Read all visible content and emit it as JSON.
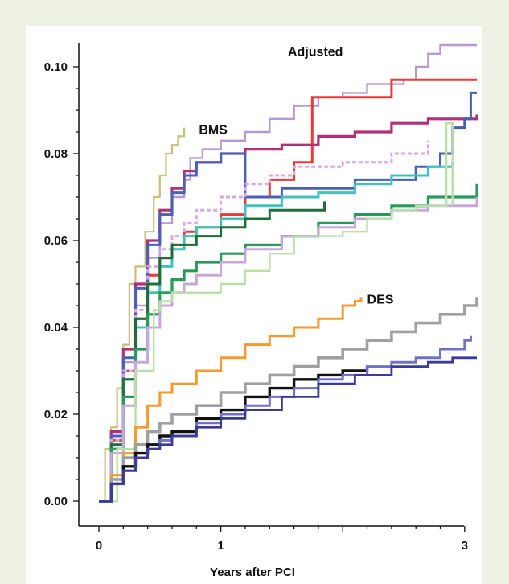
{
  "chart_data": {
    "type": "line",
    "xlabel": "Years after PCI",
    "ylabel": "",
    "xlim": [
      0,
      3.1
    ],
    "ylim": [
      0,
      0.105
    ],
    "x_ticks": [
      0,
      1,
      3
    ],
    "x_tick_labels": [
      "0",
      "1",
      "3"
    ],
    "y_ticks": [
      0,
      0.02,
      0.04,
      0.06,
      0.08,
      0.1
    ],
    "y_tick_labels": [
      "0.00",
      "0.02",
      "0.04",
      "0.06",
      "0.08",
      "0.10"
    ],
    "annotations": [
      {
        "text": "Adjusted",
        "x": 1.55,
        "y": 0.1025
      },
      {
        "text": "BMS",
        "x": 0.82,
        "y": 0.0845
      },
      {
        "text": "DES",
        "x": 2.2,
        "y": 0.0455
      }
    ],
    "grid": false,
    "series": [
      {
        "group": "BMS",
        "color": "#c8c07a",
        "width": 2.2,
        "dash": false,
        "points": [
          [
            0,
            0
          ],
          [
            0.05,
            0.012
          ],
          [
            0.1,
            0.017
          ],
          [
            0.15,
            0.026
          ],
          [
            0.2,
            0.036
          ],
          [
            0.25,
            0.05
          ],
          [
            0.3,
            0.054
          ],
          [
            0.38,
            0.062
          ],
          [
            0.45,
            0.07
          ],
          [
            0.5,
            0.075
          ],
          [
            0.55,
            0.08
          ],
          [
            0.6,
            0.082
          ],
          [
            0.65,
            0.084
          ],
          [
            0.7,
            0.086
          ]
        ]
      },
      {
        "group": "BMS",
        "color": "#b898d0",
        "width": 2.4,
        "dash": false,
        "points": [
          [
            0,
            0
          ],
          [
            0.1,
            0.014
          ],
          [
            0.2,
            0.032
          ],
          [
            0.3,
            0.045
          ],
          [
            0.4,
            0.056
          ],
          [
            0.5,
            0.064
          ],
          [
            0.6,
            0.07
          ],
          [
            0.7,
            0.074
          ],
          [
            0.75,
            0.079
          ],
          [
            0.85,
            0.081
          ],
          [
            1.0,
            0.083
          ],
          [
            1.2,
            0.085
          ],
          [
            1.4,
            0.088
          ],
          [
            1.6,
            0.091
          ],
          [
            1.8,
            0.093
          ],
          [
            2.0,
            0.094
          ],
          [
            2.2,
            0.096
          ],
          [
            2.5,
            0.097
          ],
          [
            2.6,
            0.1
          ],
          [
            2.7,
            0.103
          ],
          [
            2.8,
            0.105
          ],
          [
            3.1,
            0.105
          ]
        ]
      },
      {
        "group": "BMS",
        "color": "#e83a3a",
        "width": 3,
        "dash": false,
        "points": [
          [
            0,
            0
          ],
          [
            0.1,
            0.014
          ],
          [
            0.2,
            0.03
          ],
          [
            0.3,
            0.042
          ],
          [
            0.4,
            0.052
          ],
          [
            0.5,
            0.056
          ],
          [
            0.6,
            0.059
          ],
          [
            0.7,
            0.062
          ],
          [
            0.8,
            0.063
          ],
          [
            1.0,
            0.066
          ],
          [
            1.2,
            0.07
          ],
          [
            1.4,
            0.074
          ],
          [
            1.6,
            0.078
          ],
          [
            1.75,
            0.093
          ],
          [
            1.9,
            0.093
          ],
          [
            2.1,
            0.093
          ],
          [
            2.3,
            0.093
          ],
          [
            2.4,
            0.097
          ],
          [
            3.1,
            0.097
          ]
        ]
      },
      {
        "group": "BMS",
        "color": "#b0307a",
        "width": 3.2,
        "dash": false,
        "points": [
          [
            0,
            0
          ],
          [
            0.1,
            0.016
          ],
          [
            0.2,
            0.035
          ],
          [
            0.3,
            0.05
          ],
          [
            0.4,
            0.06
          ],
          [
            0.5,
            0.067
          ],
          [
            0.6,
            0.072
          ],
          [
            0.7,
            0.076
          ],
          [
            0.8,
            0.078
          ],
          [
            1.0,
            0.08
          ],
          [
            1.2,
            0.081
          ],
          [
            1.5,
            0.082
          ],
          [
            1.8,
            0.084
          ],
          [
            2.1,
            0.085
          ],
          [
            2.4,
            0.087
          ],
          [
            2.7,
            0.088
          ],
          [
            3.1,
            0.089
          ]
        ]
      },
      {
        "group": "BMS",
        "color": "#4860b8",
        "width": 3,
        "dash": false,
        "points": [
          [
            0,
            0
          ],
          [
            0.1,
            0.015
          ],
          [
            0.2,
            0.033
          ],
          [
            0.3,
            0.049
          ],
          [
            0.4,
            0.059
          ],
          [
            0.5,
            0.066
          ],
          [
            0.6,
            0.071
          ],
          [
            0.7,
            0.075
          ],
          [
            0.8,
            0.078
          ],
          [
            1.0,
            0.08
          ],
          [
            1.2,
            0.07
          ],
          [
            1.5,
            0.072
          ],
          [
            1.8,
            0.072
          ],
          [
            2.1,
            0.074
          ],
          [
            2.4,
            0.074
          ],
          [
            2.6,
            0.077
          ],
          [
            2.8,
            0.08
          ],
          [
            2.9,
            0.086
          ],
          [
            3.0,
            0.088
          ],
          [
            3.05,
            0.094
          ],
          [
            3.1,
            0.094
          ]
        ]
      },
      {
        "group": "BMS",
        "color": "#d8a8e0",
        "width": 3,
        "dash": true,
        "points": [
          [
            0,
            0
          ],
          [
            0.1,
            0.014
          ],
          [
            0.2,
            0.03
          ],
          [
            0.3,
            0.044
          ],
          [
            0.4,
            0.054
          ],
          [
            0.5,
            0.058
          ],
          [
            0.6,
            0.061
          ],
          [
            0.7,
            0.064
          ],
          [
            0.8,
            0.067
          ],
          [
            1.0,
            0.07
          ],
          [
            1.2,
            0.073
          ],
          [
            1.4,
            0.075
          ],
          [
            1.6,
            0.077
          ],
          [
            2.0,
            0.078
          ],
          [
            2.4,
            0.08
          ],
          [
            2.6,
            0.08
          ],
          [
            2.7,
            0.083
          ]
        ]
      },
      {
        "group": "BMS",
        "color": "#40c0c0",
        "width": 3,
        "dash": false,
        "points": [
          [
            0,
            0
          ],
          [
            0.1,
            0.013
          ],
          [
            0.2,
            0.028
          ],
          [
            0.3,
            0.04
          ],
          [
            0.4,
            0.048
          ],
          [
            0.5,
            0.054
          ],
          [
            0.6,
            0.058
          ],
          [
            0.7,
            0.061
          ],
          [
            0.8,
            0.063
          ],
          [
            1.0,
            0.065
          ],
          [
            1.2,
            0.068
          ],
          [
            1.5,
            0.07
          ],
          [
            1.8,
            0.071
          ],
          [
            2.1,
            0.073
          ],
          [
            2.4,
            0.075
          ],
          [
            2.7,
            0.077
          ],
          [
            2.9,
            0.078
          ]
        ]
      },
      {
        "group": "BMS",
        "color": "#1e6e3a",
        "width": 3,
        "dash": false,
        "points": [
          [
            0,
            0
          ],
          [
            0.1,
            0.013
          ],
          [
            0.2,
            0.028
          ],
          [
            0.3,
            0.042
          ],
          [
            0.4,
            0.05
          ],
          [
            0.5,
            0.056
          ],
          [
            0.6,
            0.059
          ],
          [
            0.8,
            0.061
          ],
          [
            1.0,
            0.063
          ],
          [
            1.2,
            0.065
          ],
          [
            1.4,
            0.067
          ],
          [
            1.6,
            0.067
          ],
          [
            1.85,
            0.069
          ]
        ]
      },
      {
        "group": "BMS",
        "color": "#2a9a5a",
        "width": 3.2,
        "dash": false,
        "points": [
          [
            0,
            0
          ],
          [
            0.1,
            0.012
          ],
          [
            0.2,
            0.024
          ],
          [
            0.3,
            0.035
          ],
          [
            0.4,
            0.043
          ],
          [
            0.5,
            0.048
          ],
          [
            0.6,
            0.051
          ],
          [
            0.7,
            0.053
          ],
          [
            0.8,
            0.055
          ],
          [
            1.0,
            0.057
          ],
          [
            1.2,
            0.059
          ],
          [
            1.5,
            0.061
          ],
          [
            1.8,
            0.064
          ],
          [
            2.1,
            0.066
          ],
          [
            2.4,
            0.068
          ],
          [
            2.7,
            0.07
          ],
          [
            3.1,
            0.073
          ]
        ]
      },
      {
        "group": "BMS",
        "color": "#c8a8dc",
        "width": 3,
        "dash": false,
        "points": [
          [
            0,
            0
          ],
          [
            0.1,
            0.011
          ],
          [
            0.2,
            0.022
          ],
          [
            0.3,
            0.032
          ],
          [
            0.4,
            0.04
          ],
          [
            0.5,
            0.045
          ],
          [
            0.6,
            0.048
          ],
          [
            0.7,
            0.05
          ],
          [
            0.8,
            0.052
          ],
          [
            1.0,
            0.055
          ],
          [
            1.2,
            0.058
          ],
          [
            1.5,
            0.061
          ],
          [
            1.8,
            0.063
          ],
          [
            2.1,
            0.065
          ],
          [
            2.4,
            0.067
          ],
          [
            2.7,
            0.068
          ],
          [
            3.1,
            0.07
          ]
        ]
      },
      {
        "group": "BMS",
        "color": "#b8e0a8",
        "width": 2.4,
        "dash": false,
        "points": [
          [
            0,
            0
          ],
          [
            0.15,
            0.012
          ],
          [
            0.3,
            0.03
          ],
          [
            0.45,
            0.044
          ],
          [
            0.5,
            0.046
          ],
          [
            0.6,
            0.048
          ],
          [
            0.8,
            0.048
          ],
          [
            1.0,
            0.05
          ],
          [
            1.2,
            0.053
          ],
          [
            1.4,
            0.057
          ],
          [
            1.6,
            0.061
          ],
          [
            1.8,
            0.061
          ],
          [
            2.0,
            0.062
          ],
          [
            2.2,
            0.065
          ],
          [
            2.4,
            0.067
          ],
          [
            2.6,
            0.068
          ],
          [
            2.8,
            0.068
          ],
          [
            2.85,
            0.087
          ],
          [
            2.9,
            0.068
          ]
        ]
      },
      {
        "group": "DES",
        "color": "#f59a30",
        "width": 3,
        "dash": false,
        "points": [
          [
            0,
            0
          ],
          [
            0.1,
            0.006
          ],
          [
            0.2,
            0.011
          ],
          [
            0.3,
            0.017
          ],
          [
            0.4,
            0.022
          ],
          [
            0.5,
            0.025
          ],
          [
            0.6,
            0.027
          ],
          [
            0.8,
            0.03
          ],
          [
            1.0,
            0.033
          ],
          [
            1.2,
            0.036
          ],
          [
            1.4,
            0.038
          ],
          [
            1.6,
            0.04
          ],
          [
            1.8,
            0.042
          ],
          [
            2.0,
            0.045
          ],
          [
            2.1,
            0.046
          ],
          [
            2.15,
            0.047
          ]
        ]
      },
      {
        "group": "DES",
        "color": "#a0a0a0",
        "width": 3.6,
        "dash": false,
        "points": [
          [
            0,
            0
          ],
          [
            0.1,
            0.005
          ],
          [
            0.2,
            0.01
          ],
          [
            0.3,
            0.013
          ],
          [
            0.4,
            0.016
          ],
          [
            0.5,
            0.018
          ],
          [
            0.6,
            0.02
          ],
          [
            0.8,
            0.022
          ],
          [
            1.0,
            0.025
          ],
          [
            1.2,
            0.027
          ],
          [
            1.4,
            0.029
          ],
          [
            1.6,
            0.031
          ],
          [
            1.8,
            0.033
          ],
          [
            2.0,
            0.035
          ],
          [
            2.2,
            0.037
          ],
          [
            2.4,
            0.039
          ],
          [
            2.6,
            0.041
          ],
          [
            2.8,
            0.043
          ],
          [
            3.0,
            0.045
          ],
          [
            3.1,
            0.047
          ]
        ]
      },
      {
        "group": "DES",
        "color": "#111111",
        "width": 3.4,
        "dash": false,
        "points": [
          [
            0,
            0
          ],
          [
            0.1,
            0.004
          ],
          [
            0.2,
            0.008
          ],
          [
            0.3,
            0.011
          ],
          [
            0.4,
            0.013
          ],
          [
            0.5,
            0.015
          ],
          [
            0.6,
            0.016
          ],
          [
            0.8,
            0.019
          ],
          [
            1.0,
            0.021
          ],
          [
            1.2,
            0.024
          ],
          [
            1.4,
            0.026
          ],
          [
            1.6,
            0.028
          ],
          [
            1.8,
            0.029
          ],
          [
            2.0,
            0.03
          ],
          [
            2.2,
            0.031
          ]
        ]
      },
      {
        "group": "DES",
        "color": "#7070c8",
        "width": 3,
        "dash": false,
        "points": [
          [
            0,
            0
          ],
          [
            0.1,
            0.004
          ],
          [
            0.2,
            0.007
          ],
          [
            0.3,
            0.01
          ],
          [
            0.4,
            0.012
          ],
          [
            0.5,
            0.014
          ],
          [
            0.6,
            0.015
          ],
          [
            0.8,
            0.018
          ],
          [
            1.0,
            0.02
          ],
          [
            1.2,
            0.022
          ],
          [
            1.4,
            0.024
          ],
          [
            1.6,
            0.026
          ],
          [
            1.8,
            0.028
          ],
          [
            2.0,
            0.029
          ],
          [
            2.2,
            0.031
          ],
          [
            2.4,
            0.032
          ],
          [
            2.6,
            0.033
          ],
          [
            2.8,
            0.035
          ],
          [
            3.0,
            0.037
          ],
          [
            3.05,
            0.038
          ]
        ]
      },
      {
        "group": "DES",
        "color": "#3a3a9a",
        "width": 2.8,
        "dash": false,
        "points": [
          [
            0,
            0
          ],
          [
            0.1,
            0.004
          ],
          [
            0.2,
            0.007
          ],
          [
            0.3,
            0.01
          ],
          [
            0.4,
            0.012
          ],
          [
            0.5,
            0.013
          ],
          [
            0.6,
            0.015
          ],
          [
            0.8,
            0.017
          ],
          [
            1.0,
            0.019
          ],
          [
            1.2,
            0.021
          ],
          [
            1.5,
            0.024
          ],
          [
            1.8,
            0.027
          ],
          [
            2.1,
            0.029
          ],
          [
            2.4,
            0.031
          ],
          [
            2.7,
            0.032
          ],
          [
            2.9,
            0.033
          ],
          [
            3.1,
            0.033
          ]
        ]
      }
    ]
  }
}
